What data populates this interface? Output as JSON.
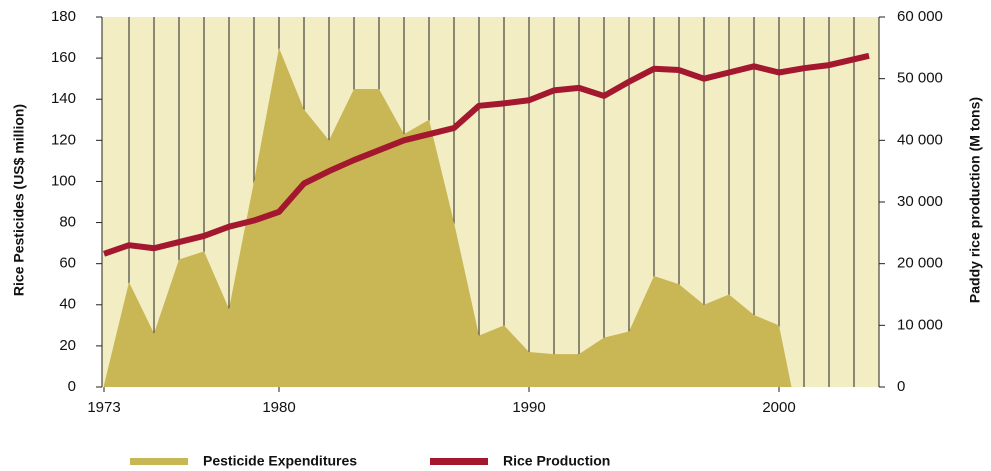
{
  "chart_data": {
    "type": "combo",
    "y_label": "Rice Pesticides (US$ million)",
    "y2_label": "Paddy rice production (M tons)",
    "xlim": [
      1973,
      2004
    ],
    "xticks": [
      1973,
      1980,
      1990,
      2000
    ],
    "xminor": [
      1974,
      1975,
      1976,
      1977,
      1978,
      1979,
      1980,
      1981,
      1982,
      1983,
      1984,
      1985,
      1986,
      1987,
      1988,
      1989,
      1990,
      1991,
      1992,
      1993,
      1994,
      1995,
      1996,
      1997,
      1998,
      1999,
      2000,
      2001,
      2002,
      2003
    ],
    "ylim": [
      0,
      180
    ],
    "yticks": [
      0,
      20,
      40,
      60,
      80,
      100,
      120,
      140,
      160,
      180
    ],
    "y2lim": [
      0,
      60000
    ],
    "y2ticks": [
      0,
      {
        "value": 10000,
        "label": "10 000"
      },
      {
        "value": 20000,
        "label": "20 000"
      },
      {
        "value": 30000,
        "label": "30 000"
      },
      {
        "value": 40000,
        "label": "40 000"
      },
      {
        "value": 50000,
        "label": "50 000"
      },
      {
        "value": 60000,
        "label": "60 000"
      }
    ],
    "background": "#f3edc3",
    "series": [
      {
        "name": "Pesticide Expenditures",
        "type": "area",
        "color": "#c9b655",
        "x": [
          1973,
          1974,
          1975,
          1976,
          1977,
          1978,
          1979,
          1980,
          1981,
          1982,
          1983,
          1984,
          1985,
          1986,
          1987,
          1988,
          1989,
          1990,
          1991,
          1992,
          1993,
          1994,
          1995,
          1996,
          1997,
          1998,
          1999,
          2000,
          2000.5
        ],
        "values": [
          1,
          51,
          26,
          62,
          66,
          38,
          100,
          165,
          135,
          120,
          145,
          145,
          123,
          130,
          80,
          25,
          30,
          17,
          16,
          16,
          24,
          27,
          54,
          50,
          40,
          45,
          35,
          30,
          0
        ]
      },
      {
        "name": "Rice Production",
        "type": "line",
        "axis": "y2",
        "color": "#a3182e",
        "x": [
          1973,
          1974,
          1975,
          1976,
          1977,
          1978,
          1979,
          1980,
          1981,
          1982,
          1983,
          1984,
          1985,
          1986,
          1987,
          1988,
          1989,
          1990,
          1991,
          1992,
          1993,
          1994,
          1995,
          1996,
          1997,
          1998,
          1999,
          2000,
          2001,
          2002,
          2003.6
        ],
        "values": [
          21600,
          23000,
          22500,
          23500,
          24500,
          26000,
          27000,
          28400,
          33000,
          35000,
          36800,
          38400,
          40000,
          41000,
          42000,
          45600,
          46000,
          46500,
          48100,
          48500,
          47200,
          49500,
          51600,
          51400,
          50000,
          51000,
          52000,
          51000,
          51700,
          52200,
          53700
        ]
      }
    ]
  }
}
